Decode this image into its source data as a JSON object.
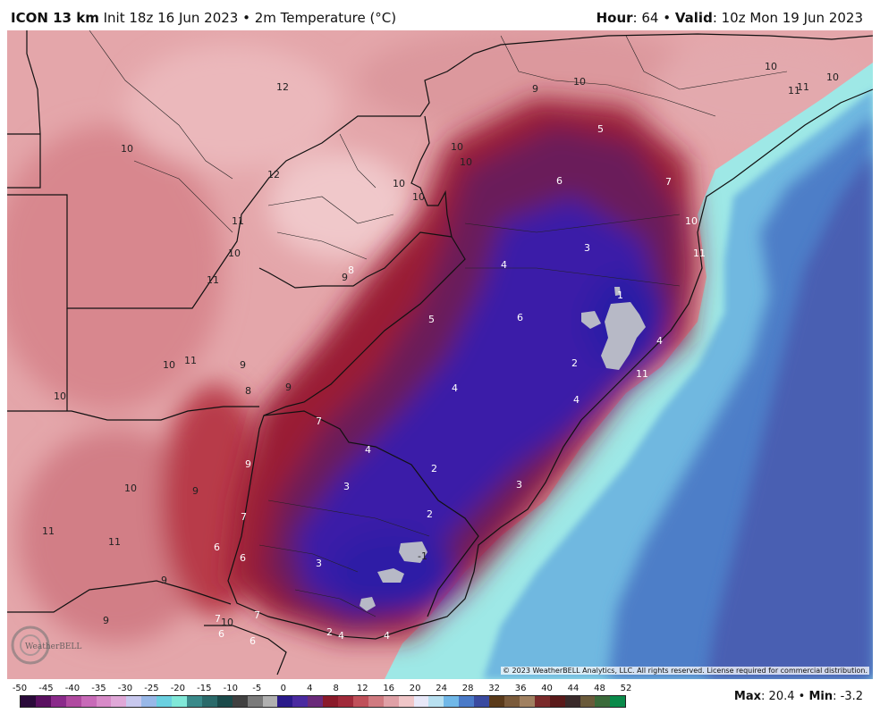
{
  "header": {
    "model": "ICON 13 km",
    "init": "Init 18z 16 Jun 2023",
    "bullet": "•",
    "field": "2m Temperature (°C)",
    "hour_label": "Hour",
    "hour_value": ": 64",
    "valid_label": "Valid",
    "valid_value": ": 10z Mon 19 Jun 2023"
  },
  "copyright": "© 2023 WeatherBELL Analytics, LLC. All rights reserved. License required for commercial distribution.",
  "logo_text": "WeatherBELL",
  "stats": {
    "max_label": "Max",
    "max_value": ": 20.4",
    "min_label": "Min",
    "min_value": ": -3.2"
  },
  "colorbar": {
    "ticks": [
      "-50",
      "-45",
      "-40",
      "-35",
      "-30",
      "-25",
      "-20",
      "-15",
      "-10",
      "-5",
      "0",
      "4",
      "8",
      "12",
      "16",
      "20",
      "24",
      "28",
      "32",
      "36",
      "40",
      "44",
      "48",
      "52"
    ],
    "colors": [
      "#2a0a3a",
      "#5a1060",
      "#8a2a8a",
      "#b04aa0",
      "#c86ab8",
      "#d88ac8",
      "#e0a8d8",
      "#c8c8ee",
      "#98b8e8",
      "#6ad0e0",
      "#80e8d8",
      "#3a8a8a",
      "#2a6a6a",
      "#1a4a4a",
      "#404040",
      "#7a7a7a",
      "#b0b0b0",
      "#2a1a8a",
      "#4a2aa0",
      "#6a2a7a",
      "#8a1a2a",
      "#a02a3a",
      "#c0505a",
      "#d07a80",
      "#e0a0a6",
      "#f0c6c8",
      "#e8e8f8",
      "#b8e0f0",
      "#70b8e8",
      "#4a7ac8",
      "#3a4aa0",
      "#5a3a1a",
      "#7a5a3a",
      "#a08060",
      "#7a2a2a",
      "#5a1a1a",
      "#3a2a2a",
      "#6a5a3a",
      "#3a6a3a",
      "#0a8a4a"
    ]
  },
  "contour_labels": [
    "12",
    "10",
    "10",
    "12",
    "11",
    "10",
    "11",
    "8",
    "9",
    "10",
    "11",
    "9",
    "8",
    "9",
    "10",
    "10",
    "9",
    "7",
    "9",
    "10",
    "9",
    "7",
    "11",
    "11",
    "6",
    "6",
    "9",
    "10",
    "7",
    "7",
    "6",
    "6",
    "9",
    "10",
    "10",
    "10",
    "10",
    "10",
    "11",
    "11",
    "10",
    "5",
    "6",
    "7",
    "3",
    "4",
    "5",
    "6",
    "2",
    "4",
    "3",
    "2",
    "2",
    "3",
    "4",
    "4",
    "11",
    "3",
    "-1",
    "2",
    "4",
    "4",
    "11",
    "4",
    "1"
  ]
}
